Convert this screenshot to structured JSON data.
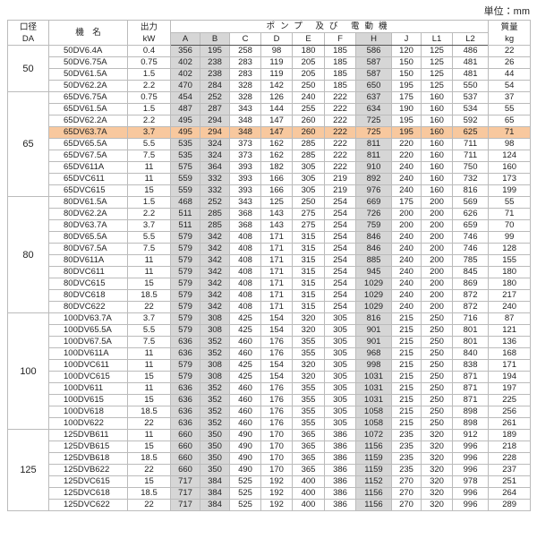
{
  "header": {
    "unit": "単位：mm"
  },
  "table": {
    "head": {
      "da": [
        "口径",
        "DA"
      ],
      "model": "機　名",
      "kw": [
        "出力",
        "kW"
      ],
      "group": "ポンプ 及び 電動機",
      "columns": [
        "A",
        "B",
        "C",
        "D",
        "E",
        "F",
        "H",
        "J",
        "L1",
        "L2"
      ],
      "mass": [
        "質量",
        "kg"
      ]
    },
    "groups": [
      {
        "da": "50",
        "rows": [
          [
            "50DV6.4A",
            "0.4",
            "356",
            "195",
            "258",
            "98",
            "180",
            "185",
            "586",
            "120",
            "125",
            "486",
            "22"
          ],
          [
            "50DV6.75A",
            "0.75",
            "402",
            "238",
            "283",
            "119",
            "205",
            "185",
            "587",
            "150",
            "125",
            "481",
            "26"
          ],
          [
            "50DV61.5A",
            "1.5",
            "402",
            "238",
            "283",
            "119",
            "205",
            "185",
            "587",
            "150",
            "125",
            "481",
            "44"
          ],
          [
            "50DV62.2A",
            "2.2",
            "470",
            "284",
            "328",
            "142",
            "250",
            "185",
            "650",
            "195",
            "125",
            "550",
            "54"
          ]
        ]
      },
      {
        "da": "65",
        "rows": [
          [
            "65DV6.75A",
            "0.75",
            "454",
            "252",
            "328",
            "126",
            "240",
            "222",
            "637",
            "175",
            "160",
            "537",
            "37"
          ],
          [
            "65DV61.5A",
            "1.5",
            "487",
            "287",
            "343",
            "144",
            "255",
            "222",
            "634",
            "190",
            "160",
            "534",
            "55"
          ],
          [
            "65DV62.2A",
            "2.2",
            "495",
            "294",
            "348",
            "147",
            "260",
            "222",
            "725",
            "195",
            "160",
            "592",
            "65"
          ],
          [
            "65DV63.7A",
            "3.7",
            "495",
            "294",
            "348",
            "147",
            "260",
            "222",
            "725",
            "195",
            "160",
            "625",
            "71"
          ],
          [
            "65DV65.5A",
            "5.5",
            "535",
            "324",
            "373",
            "162",
            "285",
            "222",
            "811",
            "220",
            "160",
            "711",
            "98"
          ],
          [
            "65DV67.5A",
            "7.5",
            "535",
            "324",
            "373",
            "162",
            "285",
            "222",
            "811",
            "220",
            "160",
            "711",
            "124"
          ],
          [
            "65DV611A",
            "11",
            "575",
            "364",
            "393",
            "182",
            "305",
            "222",
            "910",
            "240",
            "160",
            "750",
            "160"
          ],
          [
            "65DVC611",
            "11",
            "559",
            "332",
            "393",
            "166",
            "305",
            "219",
            "892",
            "240",
            "160",
            "732",
            "173"
          ],
          [
            "65DVC615",
            "15",
            "559",
            "332",
            "393",
            "166",
            "305",
            "219",
            "976",
            "240",
            "160",
            "816",
            "199"
          ]
        ]
      },
      {
        "da": "80",
        "rows": [
          [
            "80DV61.5A",
            "1.5",
            "468",
            "252",
            "343",
            "125",
            "250",
            "254",
            "669",
            "175",
            "200",
            "569",
            "55"
          ],
          [
            "80DV62.2A",
            "2.2",
            "511",
            "285",
            "368",
            "143",
            "275",
            "254",
            "726",
            "200",
            "200",
            "626",
            "71"
          ],
          [
            "80DV63.7A",
            "3.7",
            "511",
            "285",
            "368",
            "143",
            "275",
            "254",
            "759",
            "200",
            "200",
            "659",
            "70"
          ],
          [
            "80DV65.5A",
            "5.5",
            "579",
            "342",
            "408",
            "171",
            "315",
            "254",
            "846",
            "240",
            "200",
            "746",
            "99"
          ],
          [
            "80DV67.5A",
            "7.5",
            "579",
            "342",
            "408",
            "171",
            "315",
            "254",
            "846",
            "240",
            "200",
            "746",
            "128"
          ],
          [
            "80DV611A",
            "11",
            "579",
            "342",
            "408",
            "171",
            "315",
            "254",
            "885",
            "240",
            "200",
            "785",
            "155"
          ],
          [
            "80DVC611",
            "11",
            "579",
            "342",
            "408",
            "171",
            "315",
            "254",
            "945",
            "240",
            "200",
            "845",
            "180"
          ],
          [
            "80DVC615",
            "15",
            "579",
            "342",
            "408",
            "171",
            "315",
            "254",
            "1029",
            "240",
            "200",
            "869",
            "180"
          ],
          [
            "80DVC618",
            "18.5",
            "579",
            "342",
            "408",
            "171",
            "315",
            "254",
            "1029",
            "240",
            "200",
            "872",
            "217"
          ],
          [
            "80DVC622",
            "22",
            "579",
            "342",
            "408",
            "171",
            "315",
            "254",
            "1029",
            "240",
            "200",
            "872",
            "240"
          ]
        ]
      },
      {
        "da": "100",
        "rows": [
          [
            "100DV63.7A",
            "3.7",
            "579",
            "308",
            "425",
            "154",
            "320",
            "305",
            "816",
            "215",
            "250",
            "716",
            "87"
          ],
          [
            "100DV65.5A",
            "5.5",
            "579",
            "308",
            "425",
            "154",
            "320",
            "305",
            "901",
            "215",
            "250",
            "801",
            "121"
          ],
          [
            "100DV67.5A",
            "7.5",
            "636",
            "352",
            "460",
            "176",
            "355",
            "305",
            "901",
            "215",
            "250",
            "801",
            "136"
          ],
          [
            "100DV611A",
            "11",
            "636",
            "352",
            "460",
            "176",
            "355",
            "305",
            "968",
            "215",
            "250",
            "840",
            "168"
          ],
          [
            "100DVC611",
            "11",
            "579",
            "308",
            "425",
            "154",
            "320",
            "305",
            "998",
            "215",
            "250",
            "838",
            "171"
          ],
          [
            "100DVC615",
            "15",
            "579",
            "308",
            "425",
            "154",
            "320",
            "305",
            "1031",
            "215",
            "250",
            "871",
            "194"
          ],
          [
            "100DV611",
            "11",
            "636",
            "352",
            "460",
            "176",
            "355",
            "305",
            "1031",
            "215",
            "250",
            "871",
            "197"
          ],
          [
            "100DV615",
            "15",
            "636",
            "352",
            "460",
            "176",
            "355",
            "305",
            "1031",
            "215",
            "250",
            "871",
            "225"
          ],
          [
            "100DV618",
            "18.5",
            "636",
            "352",
            "460",
            "176",
            "355",
            "305",
            "1058",
            "215",
            "250",
            "898",
            "256"
          ],
          [
            "100DV622",
            "22",
            "636",
            "352",
            "460",
            "176",
            "355",
            "305",
            "1058",
            "215",
            "250",
            "898",
            "261"
          ]
        ]
      },
      {
        "da": "125",
        "rows": [
          [
            "125DVB611",
            "11",
            "660",
            "350",
            "490",
            "170",
            "365",
            "386",
            "1072",
            "235",
            "320",
            "912",
            "189"
          ],
          [
            "125DVB615",
            "15",
            "660",
            "350",
            "490",
            "170",
            "365",
            "386",
            "1156",
            "235",
            "320",
            "996",
            "218"
          ],
          [
            "125DVB618",
            "18.5",
            "660",
            "350",
            "490",
            "170",
            "365",
            "386",
            "1159",
            "235",
            "320",
            "996",
            "228"
          ],
          [
            "125DVB622",
            "22",
            "660",
            "350",
            "490",
            "170",
            "365",
            "386",
            "1159",
            "235",
            "320",
            "996",
            "237"
          ],
          [
            "125DVC615",
            "15",
            "717",
            "384",
            "525",
            "192",
            "400",
            "386",
            "1152",
            "270",
            "320",
            "978",
            "251"
          ],
          [
            "125DVC618",
            "18.5",
            "717",
            "384",
            "525",
            "192",
            "400",
            "386",
            "1156",
            "270",
            "320",
            "996",
            "264"
          ],
          [
            "125DVC622",
            "22",
            "717",
            "384",
            "525",
            "192",
            "400",
            "386",
            "1156",
            "270",
            "320",
            "996",
            "289"
          ]
        ]
      }
    ]
  }
}
